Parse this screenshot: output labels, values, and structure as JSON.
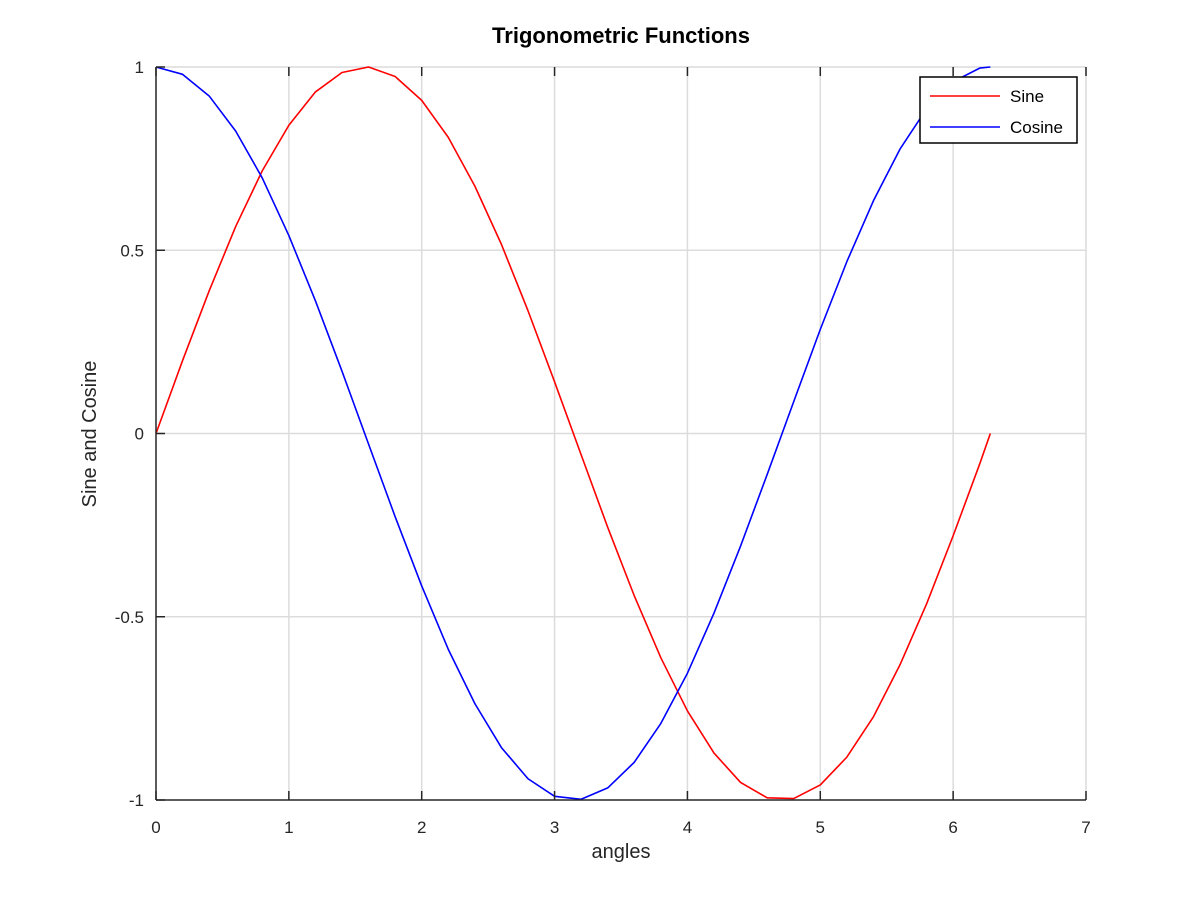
{
  "chart_data": {
    "type": "line",
    "title": "Trigonometric Functions",
    "xlabel": "angles",
    "ylabel": "Sine and Cosine",
    "xlim": [
      0,
      7
    ],
    "ylim": [
      -1,
      1
    ],
    "x_ticks": [
      0,
      1,
      2,
      3,
      4,
      5,
      6,
      7
    ],
    "y_ticks": [
      -1,
      -0.5,
      0,
      0.5,
      1
    ],
    "x_tick_labels": [
      "0",
      "1",
      "2",
      "3",
      "4",
      "5",
      "6",
      "7"
    ],
    "y_tick_labels": [
      "-1",
      "-0.5",
      "0",
      "0.5",
      "1"
    ],
    "grid": true,
    "legend_position": "top-right",
    "x": [
      0,
      0.2,
      0.4,
      0.6,
      0.8,
      1.0,
      1.2,
      1.4,
      1.6,
      1.8,
      2.0,
      2.2,
      2.4,
      2.6,
      2.8,
      3.0,
      3.2,
      3.4,
      3.6,
      3.8,
      4.0,
      4.2,
      4.4,
      4.6,
      4.8,
      5.0,
      5.2,
      5.4,
      5.6,
      5.8,
      6.0,
      6.2,
      6.28
    ],
    "series": [
      {
        "name": "Sine",
        "color": "#ff0000",
        "values": [
          0,
          0.199,
          0.389,
          0.565,
          0.717,
          0.841,
          0.932,
          0.985,
          1.0,
          0.974,
          0.909,
          0.808,
          0.675,
          0.516,
          0.335,
          0.141,
          -0.058,
          -0.256,
          -0.443,
          -0.612,
          -0.757,
          -0.872,
          -0.952,
          -0.994,
          -0.996,
          -0.959,
          -0.883,
          -0.773,
          -0.631,
          -0.465,
          -0.279,
          -0.083,
          0
        ]
      },
      {
        "name": "Cosine",
        "color": "#0000ff",
        "values": [
          1.0,
          0.98,
          0.921,
          0.825,
          0.697,
          0.54,
          0.362,
          0.17,
          -0.029,
          -0.227,
          -0.416,
          -0.589,
          -0.737,
          -0.857,
          -0.942,
          -0.99,
          -0.998,
          -0.967,
          -0.897,
          -0.791,
          -0.654,
          -0.49,
          -0.307,
          -0.112,
          0.087,
          0.284,
          0.469,
          0.635,
          0.776,
          0.886,
          0.96,
          0.997,
          1.0
        ]
      }
    ]
  }
}
